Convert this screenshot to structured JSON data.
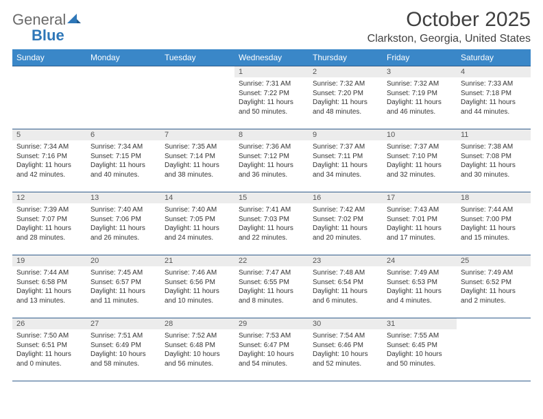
{
  "brand": {
    "word1": "General",
    "word2": "Blue"
  },
  "title": "October 2025",
  "location": "Clarkston, Georgia, United States",
  "colors": {
    "header_bg": "#3a87c8",
    "header_text": "#ffffff",
    "border": "#2e5a8a",
    "daynum_bg": "#ececec",
    "body_text": "#333333",
    "logo_gray": "#6a6a6a",
    "logo_blue": "#2e77b8"
  },
  "fonts": {
    "title_size": 30,
    "location_size": 16,
    "weekday_size": 12,
    "daynum_size": 11,
    "body_size": 10
  },
  "weekdays": [
    "Sunday",
    "Monday",
    "Tuesday",
    "Wednesday",
    "Thursday",
    "Friday",
    "Saturday"
  ],
  "weeks": [
    [
      {
        "n": "",
        "sunrise": "",
        "sunset": "",
        "daylight": ""
      },
      {
        "n": "",
        "sunrise": "",
        "sunset": "",
        "daylight": ""
      },
      {
        "n": "",
        "sunrise": "",
        "sunset": "",
        "daylight": ""
      },
      {
        "n": "1",
        "sunrise": "Sunrise: 7:31 AM",
        "sunset": "Sunset: 7:22 PM",
        "daylight": "Daylight: 11 hours and 50 minutes."
      },
      {
        "n": "2",
        "sunrise": "Sunrise: 7:32 AM",
        "sunset": "Sunset: 7:20 PM",
        "daylight": "Daylight: 11 hours and 48 minutes."
      },
      {
        "n": "3",
        "sunrise": "Sunrise: 7:32 AM",
        "sunset": "Sunset: 7:19 PM",
        "daylight": "Daylight: 11 hours and 46 minutes."
      },
      {
        "n": "4",
        "sunrise": "Sunrise: 7:33 AM",
        "sunset": "Sunset: 7:18 PM",
        "daylight": "Daylight: 11 hours and 44 minutes."
      }
    ],
    [
      {
        "n": "5",
        "sunrise": "Sunrise: 7:34 AM",
        "sunset": "Sunset: 7:16 PM",
        "daylight": "Daylight: 11 hours and 42 minutes."
      },
      {
        "n": "6",
        "sunrise": "Sunrise: 7:34 AM",
        "sunset": "Sunset: 7:15 PM",
        "daylight": "Daylight: 11 hours and 40 minutes."
      },
      {
        "n": "7",
        "sunrise": "Sunrise: 7:35 AM",
        "sunset": "Sunset: 7:14 PM",
        "daylight": "Daylight: 11 hours and 38 minutes."
      },
      {
        "n": "8",
        "sunrise": "Sunrise: 7:36 AM",
        "sunset": "Sunset: 7:12 PM",
        "daylight": "Daylight: 11 hours and 36 minutes."
      },
      {
        "n": "9",
        "sunrise": "Sunrise: 7:37 AM",
        "sunset": "Sunset: 7:11 PM",
        "daylight": "Daylight: 11 hours and 34 minutes."
      },
      {
        "n": "10",
        "sunrise": "Sunrise: 7:37 AM",
        "sunset": "Sunset: 7:10 PM",
        "daylight": "Daylight: 11 hours and 32 minutes."
      },
      {
        "n": "11",
        "sunrise": "Sunrise: 7:38 AM",
        "sunset": "Sunset: 7:08 PM",
        "daylight": "Daylight: 11 hours and 30 minutes."
      }
    ],
    [
      {
        "n": "12",
        "sunrise": "Sunrise: 7:39 AM",
        "sunset": "Sunset: 7:07 PM",
        "daylight": "Daylight: 11 hours and 28 minutes."
      },
      {
        "n": "13",
        "sunrise": "Sunrise: 7:40 AM",
        "sunset": "Sunset: 7:06 PM",
        "daylight": "Daylight: 11 hours and 26 minutes."
      },
      {
        "n": "14",
        "sunrise": "Sunrise: 7:40 AM",
        "sunset": "Sunset: 7:05 PM",
        "daylight": "Daylight: 11 hours and 24 minutes."
      },
      {
        "n": "15",
        "sunrise": "Sunrise: 7:41 AM",
        "sunset": "Sunset: 7:03 PM",
        "daylight": "Daylight: 11 hours and 22 minutes."
      },
      {
        "n": "16",
        "sunrise": "Sunrise: 7:42 AM",
        "sunset": "Sunset: 7:02 PM",
        "daylight": "Daylight: 11 hours and 20 minutes."
      },
      {
        "n": "17",
        "sunrise": "Sunrise: 7:43 AM",
        "sunset": "Sunset: 7:01 PM",
        "daylight": "Daylight: 11 hours and 17 minutes."
      },
      {
        "n": "18",
        "sunrise": "Sunrise: 7:44 AM",
        "sunset": "Sunset: 7:00 PM",
        "daylight": "Daylight: 11 hours and 15 minutes."
      }
    ],
    [
      {
        "n": "19",
        "sunrise": "Sunrise: 7:44 AM",
        "sunset": "Sunset: 6:58 PM",
        "daylight": "Daylight: 11 hours and 13 minutes."
      },
      {
        "n": "20",
        "sunrise": "Sunrise: 7:45 AM",
        "sunset": "Sunset: 6:57 PM",
        "daylight": "Daylight: 11 hours and 11 minutes."
      },
      {
        "n": "21",
        "sunrise": "Sunrise: 7:46 AM",
        "sunset": "Sunset: 6:56 PM",
        "daylight": "Daylight: 11 hours and 10 minutes."
      },
      {
        "n": "22",
        "sunrise": "Sunrise: 7:47 AM",
        "sunset": "Sunset: 6:55 PM",
        "daylight": "Daylight: 11 hours and 8 minutes."
      },
      {
        "n": "23",
        "sunrise": "Sunrise: 7:48 AM",
        "sunset": "Sunset: 6:54 PM",
        "daylight": "Daylight: 11 hours and 6 minutes."
      },
      {
        "n": "24",
        "sunrise": "Sunrise: 7:49 AM",
        "sunset": "Sunset: 6:53 PM",
        "daylight": "Daylight: 11 hours and 4 minutes."
      },
      {
        "n": "25",
        "sunrise": "Sunrise: 7:49 AM",
        "sunset": "Sunset: 6:52 PM",
        "daylight": "Daylight: 11 hours and 2 minutes."
      }
    ],
    [
      {
        "n": "26",
        "sunrise": "Sunrise: 7:50 AM",
        "sunset": "Sunset: 6:51 PM",
        "daylight": "Daylight: 11 hours and 0 minutes."
      },
      {
        "n": "27",
        "sunrise": "Sunrise: 7:51 AM",
        "sunset": "Sunset: 6:49 PM",
        "daylight": "Daylight: 10 hours and 58 minutes."
      },
      {
        "n": "28",
        "sunrise": "Sunrise: 7:52 AM",
        "sunset": "Sunset: 6:48 PM",
        "daylight": "Daylight: 10 hours and 56 minutes."
      },
      {
        "n": "29",
        "sunrise": "Sunrise: 7:53 AM",
        "sunset": "Sunset: 6:47 PM",
        "daylight": "Daylight: 10 hours and 54 minutes."
      },
      {
        "n": "30",
        "sunrise": "Sunrise: 7:54 AM",
        "sunset": "Sunset: 6:46 PM",
        "daylight": "Daylight: 10 hours and 52 minutes."
      },
      {
        "n": "31",
        "sunrise": "Sunrise: 7:55 AM",
        "sunset": "Sunset: 6:45 PM",
        "daylight": "Daylight: 10 hours and 50 minutes."
      },
      {
        "n": "",
        "sunrise": "",
        "sunset": "",
        "daylight": ""
      }
    ]
  ]
}
